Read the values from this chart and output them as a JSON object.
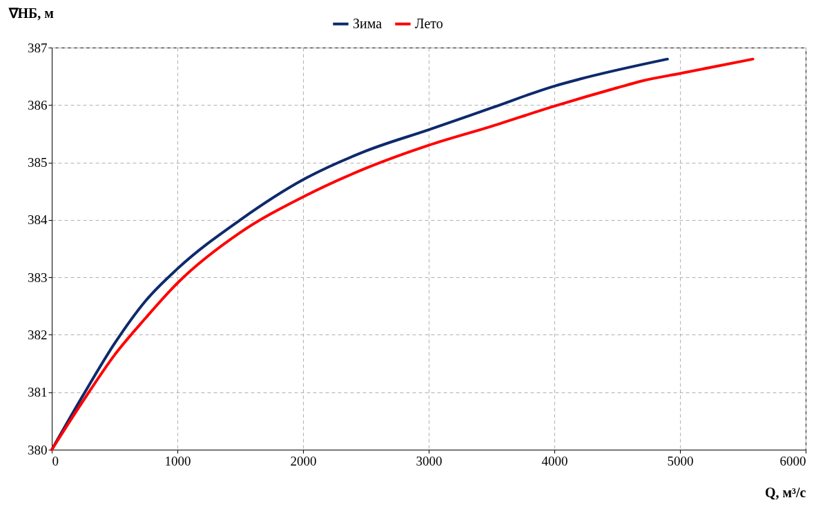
{
  "chart_data": {
    "type": "line",
    "xlabel": "Q, м³/с",
    "ylabel": "∇НБ, м",
    "xlim": [
      0,
      6000
    ],
    "xticks": [
      0,
      1000,
      2000,
      3000,
      4000,
      5000,
      6000
    ],
    "ylim": [
      380,
      387
    ],
    "yticks": [
      380,
      381,
      382,
      383,
      384,
      385,
      386,
      387
    ],
    "grid": true,
    "legend": "top",
    "line_style": "solid",
    "marker": "none",
    "series": [
      {
        "name": "Зима",
        "color": "#0d2a6b",
        "x": [
          0,
          250,
          500,
          750,
          1000,
          1500,
          2000,
          2500,
          3000,
          3500,
          4000,
          4200,
          4900
        ],
        "values": [
          380,
          380.95,
          381.85,
          382.6,
          383.15,
          384.0,
          384.7,
          385.2,
          385.57,
          385.95,
          386.33,
          386.45,
          386.8
        ]
      },
      {
        "name": "Лето",
        "color": "#ff0000",
        "x": [
          0,
          250,
          500,
          750,
          1000,
          1500,
          2000,
          2500,
          3000,
          3500,
          4000,
          4500,
          4700,
          5000,
          5580
        ],
        "values": [
          380,
          380.85,
          381.65,
          382.3,
          382.9,
          383.78,
          384.4,
          384.9,
          385.3,
          385.63,
          385.98,
          386.3,
          386.42,
          386.55,
          386.8
        ]
      }
    ]
  }
}
